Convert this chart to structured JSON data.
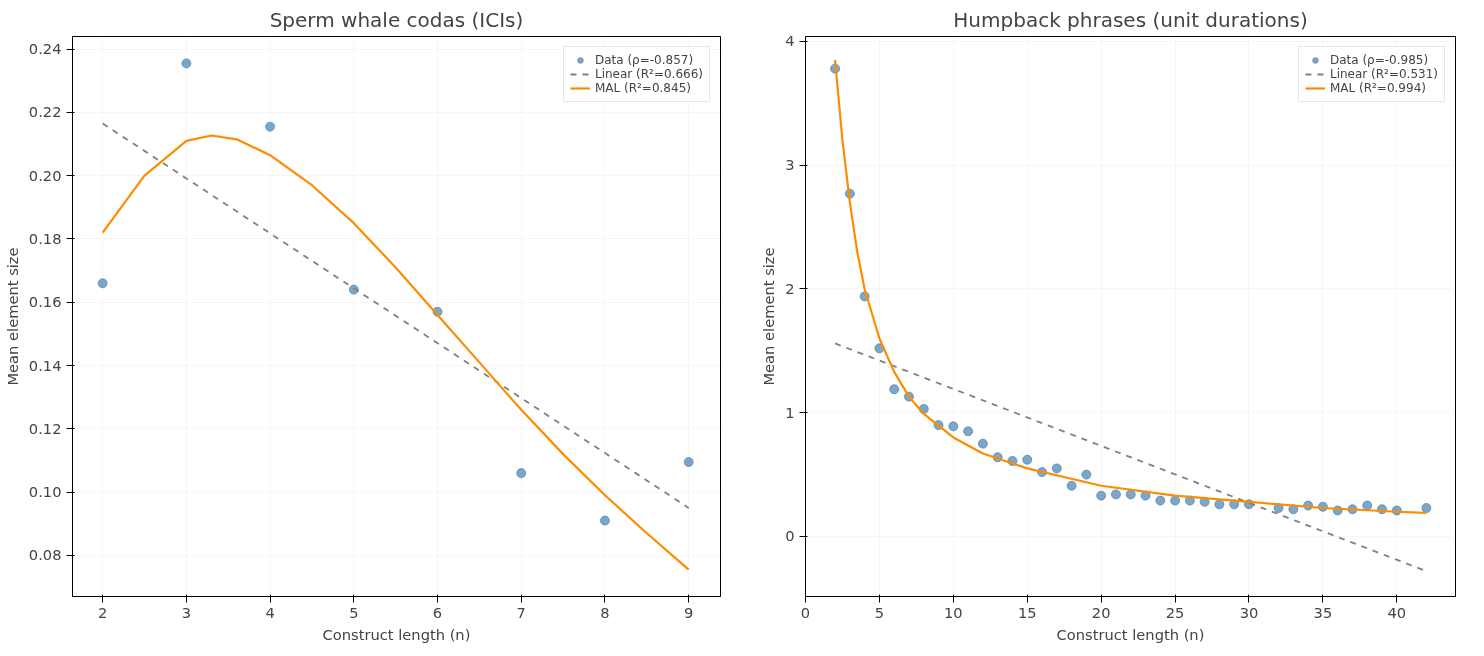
{
  "chart_data": [
    {
      "type": "scatter",
      "title": "Sperm whale codas (ICIs)",
      "xlabel": "Construct length (n)",
      "ylabel": "Mean element size",
      "xlim": [
        1.64,
        9.38
      ],
      "ylim": [
        0.067,
        0.244
      ],
      "xticks": [
        2,
        3,
        4,
        5,
        6,
        7,
        8,
        9
      ],
      "yticks": [
        {
          "value": 0.08,
          "label": "0.08"
        },
        {
          "value": 0.1,
          "label": "0.10"
        },
        {
          "value": 0.12,
          "label": "0.12"
        },
        {
          "value": 0.14,
          "label": "0.14"
        },
        {
          "value": 0.16,
          "label": "0.16"
        },
        {
          "value": 0.18,
          "label": "0.18"
        },
        {
          "value": 0.2,
          "label": "0.20"
        },
        {
          "value": 0.22,
          "label": "0.22"
        },
        {
          "value": 0.24,
          "label": "0.24"
        }
      ],
      "grid": true,
      "legend": "top right",
      "series": [
        {
          "name": "Data (ρ=-0.857)",
          "marker": "circle",
          "color": "#4682b4",
          "x": [
            2,
            3,
            4,
            5,
            6,
            7,
            8,
            9
          ],
          "values": [
            0.166,
            0.2355,
            0.2155,
            0.164,
            0.157,
            0.106,
            0.091,
            0.1095
          ]
        },
        {
          "name": "Linear (R²=0.666)",
          "type": "line",
          "line_style": "dashed",
          "color": "#808080",
          "x": [
            2,
            9
          ],
          "values": [
            0.2165,
            0.095
          ]
        },
        {
          "name": "MAL (R²=0.845)",
          "type": "line",
          "line_style": "solid",
          "color": "#ff8c00",
          "x": [
            2,
            2.5,
            3,
            3.3,
            3.6,
            4,
            4.5,
            5,
            5.5,
            6,
            6.5,
            7,
            7.5,
            8,
            8.5,
            9
          ],
          "values": [
            0.182,
            0.2,
            0.211,
            0.2127,
            0.2115,
            0.2065,
            0.197,
            0.185,
            0.171,
            0.156,
            0.141,
            0.126,
            0.112,
            0.099,
            0.087,
            0.0755
          ]
        }
      ]
    },
    {
      "type": "scatter",
      "title": "Humpback phrases (unit durations)",
      "xlabel": "Construct length (n)",
      "ylabel": "Mean element size",
      "xlim": [
        0,
        43.97
      ],
      "ylim": [
        -0.485,
        4.04
      ],
      "xticks": [
        0,
        5,
        10,
        15,
        20,
        25,
        30,
        35,
        40
      ],
      "yticks": [
        0,
        1,
        2,
        3,
        4
      ],
      "grid": true,
      "legend": "top right",
      "series": [
        {
          "name": "Data (ρ=-0.985)",
          "marker": "circle",
          "color": "#4682b4",
          "x": [
            2,
            3,
            4,
            5,
            6,
            7,
            8,
            9,
            10,
            11,
            12,
            13,
            14,
            15,
            16,
            17,
            18,
            19,
            20,
            21,
            22,
            23,
            24,
            25,
            26,
            27,
            28,
            29,
            30,
            32,
            33,
            34,
            35,
            36,
            37,
            38,
            39,
            40,
            42
          ],
          "values": [
            3.78,
            2.77,
            1.94,
            1.52,
            1.19,
            1.13,
            1.03,
            0.9,
            0.89,
            0.85,
            0.75,
            0.64,
            0.61,
            0.62,
            0.52,
            0.55,
            0.41,
            0.5,
            0.33,
            0.34,
            0.34,
            0.33,
            0.29,
            0.29,
            0.29,
            0.28,
            0.26,
            0.26,
            0.26,
            0.23,
            0.22,
            0.25,
            0.24,
            0.21,
            0.22,
            0.25,
            0.22,
            0.21,
            0.23
          ]
        },
        {
          "name": "Linear (R²=0.531)",
          "type": "line",
          "line_style": "dashed",
          "color": "#808080",
          "x": [
            2,
            42
          ],
          "values": [
            1.56,
            -0.28
          ]
        },
        {
          "name": "MAL (R²=0.994)",
          "type": "line",
          "line_style": "solid",
          "color": "#ff8c00",
          "x": [
            2,
            2.5,
            3,
            3.5,
            4,
            5,
            6,
            7,
            8,
            10,
            12,
            15,
            20,
            25,
            30,
            35,
            40,
            42
          ],
          "values": [
            3.85,
            3.2,
            2.7,
            2.3,
            2.0,
            1.6,
            1.33,
            1.13,
            0.99,
            0.8,
            0.67,
            0.55,
            0.41,
            0.33,
            0.28,
            0.23,
            0.2,
            0.19
          ]
        }
      ]
    }
  ]
}
